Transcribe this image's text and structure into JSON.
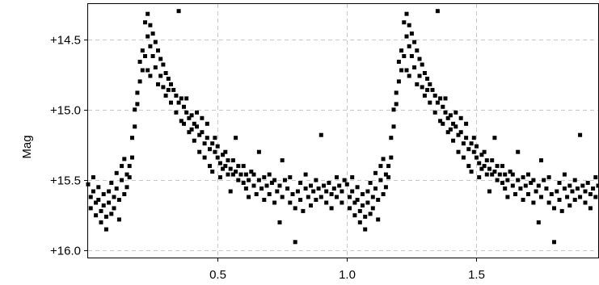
{
  "chart_data": {
    "type": "scatter",
    "title": "",
    "xlabel": "",
    "ylabel": "Mag",
    "xlim": [
      0.0,
      1.97
    ],
    "ylim": [
      16.05,
      14.25
    ],
    "y_inverted": true,
    "grid": true,
    "legend": "none",
    "point_color": "#000000",
    "grid_color": "#c8c8c8",
    "x_ticks": [
      {
        "value": 0.5,
        "label": "0.5"
      },
      {
        "value": 1.0,
        "label": "1.0"
      },
      {
        "value": 1.5,
        "label": "1.5"
      }
    ],
    "y_ticks": [
      {
        "value": 14.5,
        "label": "+14.5"
      },
      {
        "value": 15.0,
        "label": "+15.0"
      },
      {
        "value": 15.5,
        "label": "+15.5"
      },
      {
        "value": 16.0,
        "label": "+16.0"
      }
    ],
    "phase_repeat": 1.0,
    "series": [
      {
        "points": [
          [
            0.0,
            15.53
          ],
          [
            0.01,
            15.62
          ],
          [
            0.01,
            15.7
          ],
          [
            0.02,
            15.48
          ],
          [
            0.02,
            15.58
          ],
          [
            0.03,
            15.66
          ],
          [
            0.03,
            15.75
          ],
          [
            0.04,
            15.55
          ],
          [
            0.04,
            15.64
          ],
          [
            0.05,
            15.72
          ],
          [
            0.05,
            15.8
          ],
          [
            0.06,
            15.6
          ],
          [
            0.06,
            15.68
          ],
          [
            0.07,
            15.76
          ],
          [
            0.07,
            15.85
          ],
          [
            0.08,
            15.58
          ],
          [
            0.08,
            15.66
          ],
          [
            0.09,
            15.74
          ],
          [
            0.09,
            15.52
          ],
          [
            0.1,
            15.62
          ],
          [
            0.1,
            15.7
          ],
          [
            0.11,
            15.45
          ],
          [
            0.11,
            15.56
          ],
          [
            0.12,
            15.64
          ],
          [
            0.12,
            15.78
          ],
          [
            0.13,
            15.4
          ],
          [
            0.13,
            15.5
          ],
          [
            0.14,
            15.6
          ],
          [
            0.14,
            15.35
          ],
          [
            0.15,
            15.46
          ],
          [
            0.15,
            15.55
          ],
          [
            0.16,
            15.4
          ],
          [
            0.16,
            15.48
          ],
          [
            0.17,
            15.2
          ],
          [
            0.17,
            15.34
          ],
          [
            0.18,
            15.0
          ],
          [
            0.18,
            15.12
          ],
          [
            0.19,
            14.88
          ],
          [
            0.19,
            14.96
          ],
          [
            0.2,
            14.8
          ],
          [
            0.2,
            14.66
          ],
          [
            0.21,
            14.58
          ],
          [
            0.21,
            14.72
          ],
          [
            0.22,
            14.38
          ],
          [
            0.22,
            14.62
          ],
          [
            0.23,
            14.32
          ],
          [
            0.23,
            14.48
          ],
          [
            0.23,
            14.72
          ],
          [
            0.24,
            14.4
          ],
          [
            0.24,
            14.55
          ],
          [
            0.24,
            14.76
          ],
          [
            0.25,
            14.46
          ],
          [
            0.25,
            14.62
          ],
          [
            0.26,
            14.52
          ],
          [
            0.26,
            14.7
          ],
          [
            0.27,
            14.58
          ],
          [
            0.27,
            14.82
          ],
          [
            0.28,
            14.64
          ],
          [
            0.28,
            14.76
          ],
          [
            0.29,
            14.68
          ],
          [
            0.29,
            14.84
          ],
          [
            0.3,
            14.74
          ],
          [
            0.3,
            14.9
          ],
          [
            0.31,
            14.78
          ],
          [
            0.31,
            14.86
          ],
          [
            0.32,
            14.82
          ],
          [
            0.32,
            14.95
          ],
          [
            0.33,
            14.86
          ],
          [
            0.34,
            14.9
          ],
          [
            0.34,
            15.02
          ],
          [
            0.35,
            14.3
          ],
          [
            0.35,
            14.95
          ],
          [
            0.36,
            14.92
          ],
          [
            0.36,
            15.08
          ],
          [
            0.37,
            14.98
          ],
          [
            0.37,
            15.1
          ],
          [
            0.38,
            15.02
          ],
          [
            0.38,
            14.92
          ],
          [
            0.39,
            15.06
          ],
          [
            0.39,
            15.16
          ],
          [
            0.4,
            15.04
          ],
          [
            0.4,
            15.14
          ],
          [
            0.41,
            15.1
          ],
          [
            0.41,
            15.22
          ],
          [
            0.42,
            15.12
          ],
          [
            0.42,
            15.02
          ],
          [
            0.43,
            15.18
          ],
          [
            0.43,
            15.3
          ],
          [
            0.44,
            15.16
          ],
          [
            0.44,
            15.06
          ],
          [
            0.45,
            15.24
          ],
          [
            0.45,
            15.34
          ],
          [
            0.46,
            15.2
          ],
          [
            0.46,
            15.1
          ],
          [
            0.47,
            15.28
          ],
          [
            0.47,
            15.4
          ],
          [
            0.48,
            15.24
          ],
          [
            0.48,
            15.44
          ],
          [
            0.49,
            15.3
          ],
          [
            0.49,
            15.2
          ],
          [
            0.5,
            15.34
          ],
          [
            0.5,
            15.26
          ],
          [
            0.51,
            15.38
          ],
          [
            0.51,
            15.48
          ],
          [
            0.52,
            15.32
          ],
          [
            0.52,
            15.42
          ],
          [
            0.53,
            15.4
          ],
          [
            0.53,
            15.3
          ],
          [
            0.54,
            15.46
          ],
          [
            0.54,
            15.36
          ],
          [
            0.55,
            15.42
          ],
          [
            0.55,
            15.58
          ],
          [
            0.56,
            15.36
          ],
          [
            0.56,
            15.46
          ],
          [
            0.57,
            15.44
          ],
          [
            0.57,
            15.2
          ],
          [
            0.58,
            15.5
          ],
          [
            0.58,
            15.4
          ],
          [
            0.59,
            15.46
          ],
          [
            0.6,
            15.52
          ],
          [
            0.6,
            15.4
          ],
          [
            0.61,
            15.56
          ],
          [
            0.61,
            15.46
          ],
          [
            0.62,
            15.5
          ],
          [
            0.62,
            15.62
          ],
          [
            0.63,
            15.44
          ],
          [
            0.64,
            15.54
          ],
          [
            0.64,
            15.46
          ],
          [
            0.65,
            15.6
          ],
          [
            0.66,
            15.5
          ],
          [
            0.66,
            15.3
          ],
          [
            0.67,
            15.56
          ],
          [
            0.68,
            15.48
          ],
          [
            0.68,
            15.64
          ],
          [
            0.69,
            15.54
          ],
          [
            0.7,
            15.46
          ],
          [
            0.7,
            15.6
          ],
          [
            0.71,
            15.52
          ],
          [
            0.72,
            15.66
          ],
          [
            0.72,
            15.5
          ],
          [
            0.73,
            15.58
          ],
          [
            0.74,
            15.8
          ],
          [
            0.74,
            15.54
          ],
          [
            0.75,
            15.36
          ],
          [
            0.75,
            15.62
          ],
          [
            0.76,
            15.5
          ],
          [
            0.77,
            15.56
          ],
          [
            0.78,
            15.66
          ],
          [
            0.78,
            15.48
          ],
          [
            0.79,
            15.6
          ],
          [
            0.8,
            15.7
          ],
          [
            0.8,
            15.94
          ],
          [
            0.81,
            15.58
          ],
          [
            0.82,
            15.52
          ],
          [
            0.82,
            15.64
          ],
          [
            0.83,
            15.72
          ],
          [
            0.84,
            15.56
          ],
          [
            0.84,
            15.46
          ],
          [
            0.85,
            15.62
          ],
          [
            0.86,
            15.54
          ],
          [
            0.86,
            15.68
          ],
          [
            0.87,
            15.58
          ],
          [
            0.88,
            15.5
          ],
          [
            0.88,
            15.64
          ],
          [
            0.89,
            15.56
          ],
          [
            0.9,
            15.62
          ],
          [
            0.9,
            15.18
          ],
          [
            0.91,
            15.54
          ],
          [
            0.92,
            15.66
          ],
          [
            0.92,
            15.58
          ],
          [
            0.93,
            15.52
          ],
          [
            0.94,
            15.6
          ],
          [
            0.94,
            15.7
          ],
          [
            0.95,
            15.56
          ],
          [
            0.96,
            15.48
          ],
          [
            0.96,
            15.62
          ],
          [
            0.97,
            15.54
          ],
          [
            0.98,
            15.66
          ],
          [
            0.98,
            15.58
          ],
          [
            0.99,
            15.5
          ]
        ]
      }
    ]
  }
}
